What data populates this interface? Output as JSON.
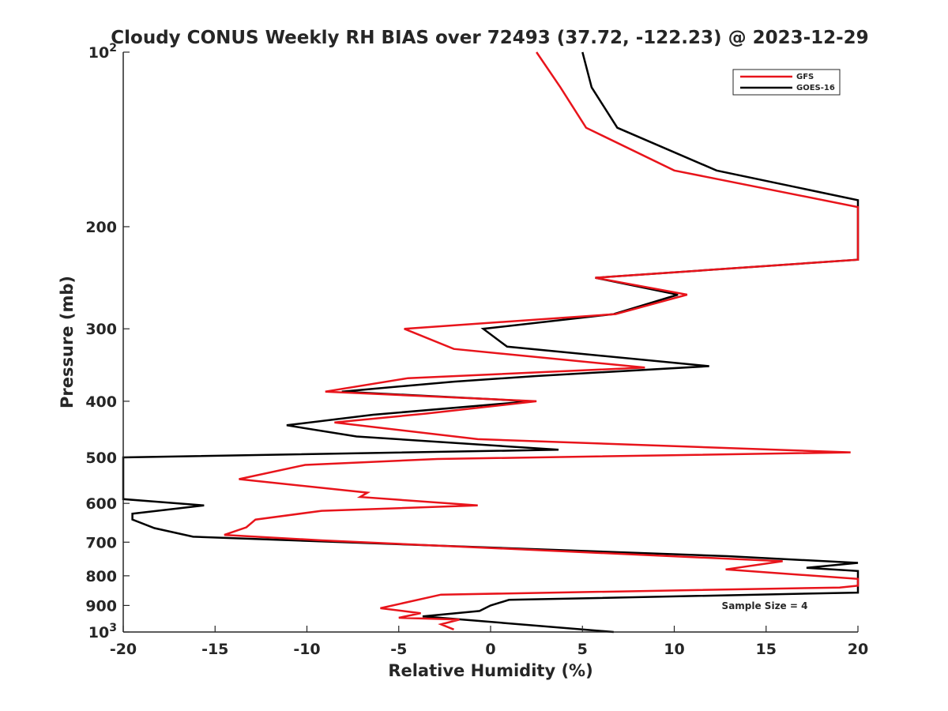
{
  "chart_data": {
    "type": "line",
    "title": "Cloudy CONUS Weekly RH BIAS over 72493 (37.72, -122.23) @ 2023-12-29",
    "xlabel": "Relative Humidity (%)",
    "ylabel": "Pressure (mb)",
    "xlim": [
      -20,
      20
    ],
    "ylim": [
      100,
      1000
    ],
    "y_scale": "log",
    "y_reversed": true,
    "grid": false,
    "legend_position": "top-right",
    "x_ticks": [
      "-20",
      "-15",
      "-10",
      "-5",
      "0",
      "5",
      "10",
      "15",
      "20"
    ],
    "y_ticks": [
      {
        "value": 100,
        "base": "10",
        "exp": "2"
      },
      {
        "value": 200,
        "label": "200"
      },
      {
        "value": 300,
        "label": "300"
      },
      {
        "value": 400,
        "label": "400"
      },
      {
        "value": 500,
        "label": "500"
      },
      {
        "value": 600,
        "label": "600"
      },
      {
        "value": 700,
        "label": "700"
      },
      {
        "value": 800,
        "label": "800"
      },
      {
        "value": 900,
        "label": "900"
      },
      {
        "value": 1000,
        "base": "10",
        "exp": "3"
      }
    ],
    "annotation": "Sample Size = 4",
    "series": [
      {
        "name": "GFS",
        "color": "#e8141b",
        "points": [
          [
            2.5,
            100
          ],
          [
            3.8,
            115
          ],
          [
            5.2,
            135
          ],
          [
            10.0,
            160
          ],
          [
            20.0,
            185
          ],
          [
            20.0,
            228
          ],
          [
            5.7,
            245
          ],
          [
            10.7,
            262
          ],
          [
            6.8,
            283
          ],
          [
            -4.7,
            300
          ],
          [
            -2.0,
            325
          ],
          [
            8.4,
            350
          ],
          [
            -4.5,
            365
          ],
          [
            -9.0,
            385
          ],
          [
            2.5,
            400
          ],
          [
            -3.5,
            420
          ],
          [
            -8.5,
            435
          ],
          [
            -0.7,
            465
          ],
          [
            19.6,
            490
          ],
          [
            -2.9,
            503
          ],
          [
            -10.1,
            515
          ],
          [
            -13.7,
            545
          ],
          [
            -6.7,
            575
          ],
          [
            -7.1,
            585
          ],
          [
            -0.7,
            605
          ],
          [
            -9.2,
            618
          ],
          [
            -12.8,
            640
          ],
          [
            -13.3,
            660
          ],
          [
            -14.5,
            680
          ],
          [
            -9.2,
            695
          ],
          [
            15.9,
            755
          ],
          [
            12.8,
            780
          ],
          [
            20.0,
            810
          ],
          [
            20.0,
            832
          ],
          [
            19.0,
            838
          ],
          [
            -2.7,
            862
          ],
          [
            -6.0,
            910
          ],
          [
            -3.8,
            928
          ],
          [
            -5.0,
            945
          ],
          [
            -1.7,
            952
          ],
          [
            -2.7,
            970
          ],
          [
            -2.0,
            990
          ]
        ]
      },
      {
        "name": "GOES-16",
        "color": "#000000",
        "points": [
          [
            5.0,
            100
          ],
          [
            5.5,
            115
          ],
          [
            6.9,
            135
          ],
          [
            12.3,
            160
          ],
          [
            20.0,
            180
          ],
          [
            20.0,
            228
          ],
          [
            5.7,
            245
          ],
          [
            10.2,
            262
          ],
          [
            6.7,
            283
          ],
          [
            -0.4,
            300
          ],
          [
            0.9,
            322
          ],
          [
            11.9,
            348
          ],
          [
            2.4,
            362
          ],
          [
            -2.0,
            370
          ],
          [
            -8.1,
            385
          ],
          [
            2.2,
            400
          ],
          [
            -6.4,
            422
          ],
          [
            -11.1,
            440
          ],
          [
            -7.3,
            460
          ],
          [
            3.7,
            485
          ],
          [
            -20.0,
            500
          ],
          [
            -20.0,
            590
          ],
          [
            -15.6,
            605
          ],
          [
            -19.5,
            625
          ],
          [
            -19.5,
            640
          ],
          [
            -18.3,
            662
          ],
          [
            -16.2,
            685
          ],
          [
            12.9,
            740
          ],
          [
            20.0,
            760
          ],
          [
            17.2,
            775
          ],
          [
            20.0,
            785
          ],
          [
            20.0,
            855
          ],
          [
            1.0,
            880
          ],
          [
            0.0,
            900
          ],
          [
            -0.6,
            920
          ],
          [
            -3.7,
            940
          ],
          [
            -2.2,
            948
          ],
          [
            6.7,
            1000
          ]
        ]
      }
    ]
  }
}
